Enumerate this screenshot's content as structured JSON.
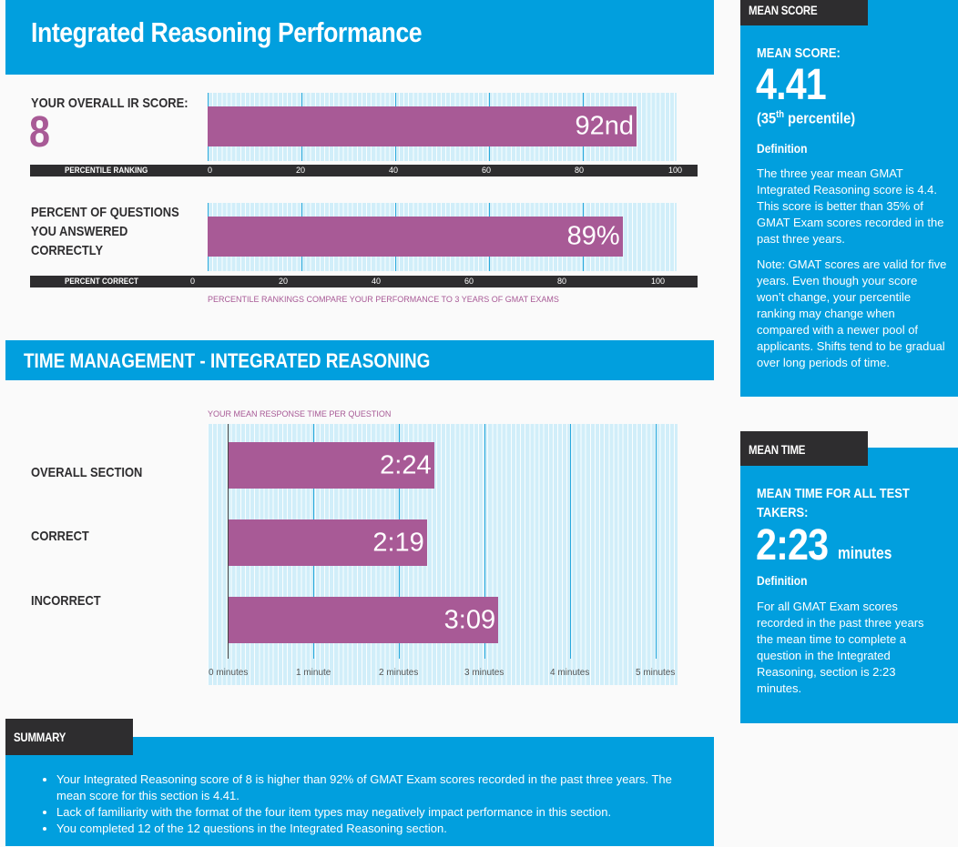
{
  "header": {
    "title": "Integrated Reasoning Performance"
  },
  "ir_score": {
    "label": "YOUR OVERALL IR SCORE:",
    "value": "8",
    "percentile_value": 92,
    "percentile_text": "92nd",
    "axis_title": "PERCENTILE RANKING",
    "axis_ticks": [
      "0",
      "20",
      "40",
      "60",
      "80",
      "100"
    ]
  },
  "percent_correct": {
    "label_line1": "PERCENT OF QUESTIONS",
    "label_line2": "YOU ANSWERED",
    "label_line3": "CORRECTLY",
    "value": 89,
    "value_text": "89%",
    "axis_title": "PERCENT CORRECT",
    "axis_ticks": [
      "0",
      "20",
      "40",
      "60",
      "80",
      "100"
    ],
    "note": "PERCENTILE RANKINGS COMPARE YOUR PERFORMANCE TO 3 YEARS OF GMAT EXAMS"
  },
  "time_management": {
    "title": "TIME MANAGEMENT - INTEGRATED REASONING",
    "chart_caption": "YOUR MEAN RESPONSE TIME PER QUESTION",
    "rows": [
      {
        "label": "OVERALL SECTION",
        "minutes": 2.4,
        "text": "2:24"
      },
      {
        "label": "CORRECT",
        "minutes": 2.3167,
        "text": "2:19"
      },
      {
        "label": "INCORRECT",
        "minutes": 3.15,
        "text": "3:09"
      }
    ],
    "axis_ticks": [
      "0 minutes",
      "1 minute",
      "2 minutes",
      "3 minutes",
      "4 minutes",
      "5 minutes"
    ],
    "axis_max": 5
  },
  "mean_score_panel": {
    "tab": "MEAN SCORE",
    "head": "MEAN SCORE:",
    "value": "4.41",
    "percentile_prefix": "(35",
    "percentile_sup": "th",
    "percentile_suffix": " percentile)",
    "def_label": "Definition",
    "def_text": "The three year mean GMAT Integrated Reasoning score is 4.4. This score is better than 35% of GMAT Exam scores recorded in the past three years.",
    "note_text": "Note: GMAT scores are valid for five years. Even though your score won’t change, your percentile ranking may change when compared with a newer pool of applicants. Shifts tend to be gradual over long periods of time."
  },
  "mean_time_panel": {
    "tab": "MEAN TIME",
    "head_line1": "MEAN TIME FOR ALL TEST",
    "head_line2": "TAKERS:",
    "value": "2:23",
    "unit": "minutes",
    "def_label": "Definition",
    "def_text": "For all GMAT Exam scores recorded in the past three years the mean time to complete a question in the Integrated Reasoning, section is 2:23 minutes."
  },
  "summary": {
    "tab": "SUMMARY",
    "items": [
      "Your Integrated Reasoning score of 8 is higher than 92% of GMAT Exam scores recorded in the past three years. The mean score for this section is 4.41.",
      "Lack of familiarity with the format of the four item types may negatively impact performance in this section.",
      "You completed 12 of the 12 questions in the Integrated Reasoning section."
    ]
  },
  "colors": {
    "accent_blue": "#019fde",
    "bar_purple": "#a85a96",
    "dark": "#2e2d2f",
    "plot_bg": "#d1eef9"
  }
}
